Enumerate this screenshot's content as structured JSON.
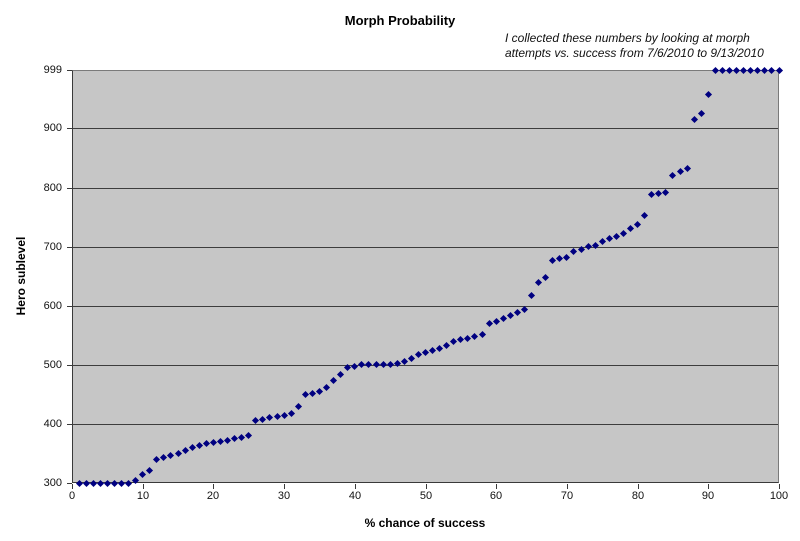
{
  "chart_data": {
    "type": "scatter",
    "title": "Morph Probability",
    "xlabel": "% chance of success",
    "ylabel": "Hero sublevel",
    "annotation": "I collected these numbers by looking at morph attempts vs. success from 7/6/2010 to 9/13/2010",
    "xlim": [
      0,
      100
    ],
    "ylim": [
      300,
      999
    ],
    "x_ticks": [
      0,
      10,
      20,
      30,
      40,
      50,
      60,
      70,
      80,
      90,
      100
    ],
    "y_ticks": [
      300,
      400,
      500,
      600,
      700,
      800,
      900,
      999
    ],
    "grid": true,
    "legend": false,
    "marker": "diamond",
    "colors": {
      "marker": "#000080",
      "plot_bg": "#c6c6c6",
      "gridline": "#3d3d3d"
    },
    "x": [
      1,
      2,
      3,
      4,
      5,
      6,
      7,
      8,
      9,
      10,
      11,
      12,
      13,
      14,
      15,
      16,
      17,
      18,
      19,
      20,
      21,
      22,
      23,
      24,
      25,
      26,
      27,
      28,
      29,
      30,
      31,
      32,
      33,
      34,
      35,
      36,
      37,
      38,
      39,
      40,
      41,
      42,
      43,
      44,
      45,
      46,
      47,
      48,
      49,
      50,
      51,
      52,
      53,
      54,
      55,
      56,
      57,
      58,
      59,
      60,
      61,
      62,
      63,
      64,
      65,
      66,
      67,
      68,
      69,
      70,
      71,
      72,
      73,
      74,
      75,
      76,
      77,
      78,
      79,
      80,
      81,
      82,
      83,
      84,
      85,
      86,
      87,
      88,
      89,
      90,
      91,
      92,
      93,
      94,
      95,
      96,
      97,
      98,
      99,
      100
    ],
    "y": [
      300,
      300,
      300,
      300,
      300,
      300,
      300,
      300,
      305,
      315,
      322,
      340,
      344,
      347,
      350,
      355,
      360,
      364,
      367,
      368,
      370,
      372,
      375,
      377,
      380,
      405,
      408,
      411,
      413,
      415,
      417,
      430,
      450,
      452,
      455,
      462,
      473,
      483,
      495,
      498,
      500,
      500,
      500,
      500,
      500,
      502,
      506,
      511,
      517,
      521,
      525,
      528,
      532,
      540,
      543,
      545,
      548,
      552,
      570,
      574,
      578,
      584,
      589,
      594,
      618,
      640,
      648,
      677,
      680,
      682,
      692,
      695,
      700,
      702,
      708,
      713,
      718,
      723,
      730,
      738,
      752,
      788,
      790,
      791,
      820,
      828,
      832,
      915,
      925,
      958,
      999,
      999,
      999,
      999,
      999,
      999,
      999,
      999,
      999,
      999
    ]
  },
  "annotation": {
    "line1": "I collected these numbers by looking at morph",
    "line2": "attempts vs. success from 7/6/2010 to 9/13/2010"
  }
}
